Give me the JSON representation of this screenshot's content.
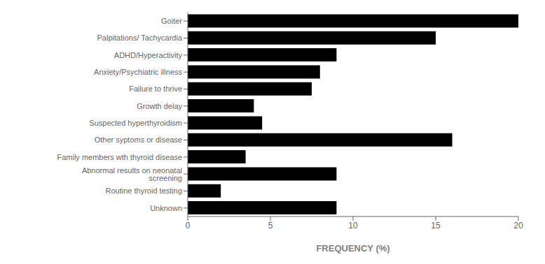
{
  "chart_data": {
    "type": "bar",
    "orientation": "horizontal",
    "categories": [
      "Unknown",
      "Routine thyroid testing",
      "Abnormal results on neonatal screening",
      "Family members wth thyroid disease",
      "Other syptoms or disease",
      "Suspected hyperthyroidism",
      "Growth delay",
      "Failure to thrive",
      "Anxiety/Psychiatric illness",
      "ADHD/Hyperactivity",
      "Palpitations/ Tachycardia",
      "Goiter"
    ],
    "values": [
      9.0,
      2.0,
      9.0,
      3.5,
      16.0,
      4.5,
      4.0,
      7.5,
      8.0,
      9.0,
      15.0,
      20.0
    ],
    "xlabel": "FREQUENCY (%)",
    "xlim": [
      0,
      20
    ],
    "xticks": [
      0,
      5,
      10,
      15,
      20
    ],
    "color": "black",
    "grid": false
  }
}
